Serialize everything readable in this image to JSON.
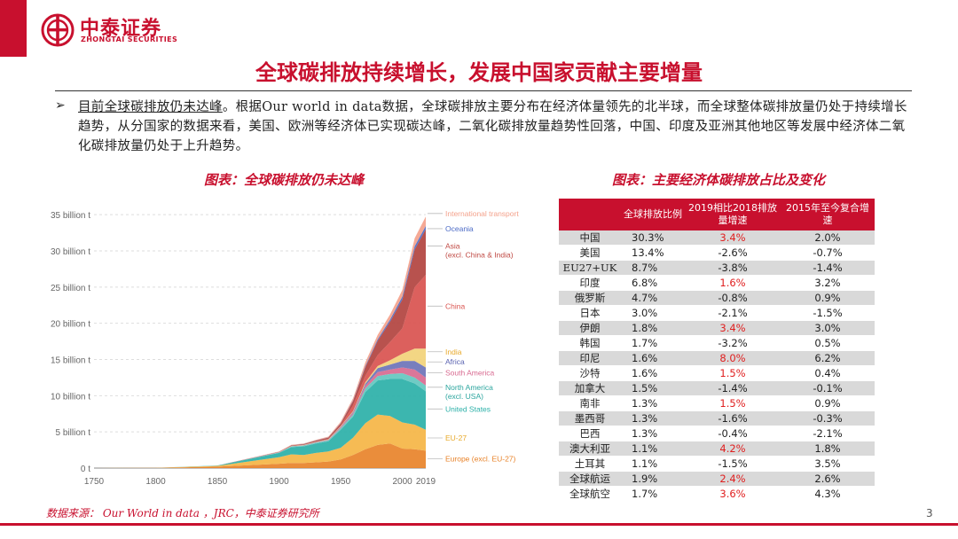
{
  "brand": {
    "name_cn": "中泰证券",
    "name_en": "ZHONGTAI SECURITIES",
    "color": "#c8102e"
  },
  "title": "全球碳排放持续增长，发展中国家贡献主要增量",
  "bullet": {
    "arrow": "➢",
    "lead": "目前全球碳排放仍未达峰",
    "body": "。根据Our world in data数据，全球碳排放主要分布在经济体量领先的北半球，而全球整体碳排放量仍处于持续增长趋势，从分国家的数据来看，美国、欧洲等经济体已实现碳达峰，二氧化碳排放量趋势性回落，中国、印度及亚洲其他地区等发展中经济体二氧化碳排放量仍处于上升趋势。"
  },
  "left_caption": "图表：全球碳排放仍未达峰",
  "right_caption": "图表：主要经济体碳排放占比及变化",
  "chart_data": {
    "type": "area",
    "stacked": true,
    "x": [
      1750,
      1800,
      1850,
      1900,
      1910,
      1920,
      1930,
      1940,
      1950,
      1960,
      1970,
      1980,
      1990,
      2000,
      2010,
      2019
    ],
    "ylim": [
      0,
      36
    ],
    "y_ticks": [
      "0 t",
      "5 billion t",
      "10 billion t",
      "15 billion t",
      "20 billion t",
      "25 billion t",
      "30 billion t",
      "35 billion t"
    ],
    "x_ticks": [
      "1750",
      "1800",
      "1850",
      "1900",
      "1950",
      "2000",
      "2019"
    ],
    "x_tick_values": [
      1750,
      1800,
      1850,
      1900,
      1950,
      2000,
      2019
    ],
    "series": [
      {
        "name": "Europe (excl. EU-27)",
        "color": "#e8832a",
        "values": [
          0,
          0.01,
          0.2,
          0.6,
          0.7,
          0.7,
          0.8,
          0.9,
          1.2,
          1.8,
          2.6,
          3.2,
          3.4,
          2.7,
          2.6,
          2.4
        ]
      },
      {
        "name": "EU-27",
        "color": "#f5b545",
        "values": [
          0,
          0.02,
          0.1,
          0.9,
          1.2,
          1.1,
          1.3,
          1.4,
          1.6,
          2.4,
          3.6,
          4.2,
          3.8,
          3.6,
          3.4,
          2.9
        ]
      },
      {
        "name": "United States",
        "color": "#2bb0a8",
        "values": [
          0,
          0,
          0.05,
          0.6,
          1.0,
          1.2,
          1.3,
          1.4,
          2.5,
          2.9,
          4.3,
          4.7,
          5.1,
          6.0,
          5.7,
          5.3
        ]
      },
      {
        "name": "North America (excl. USA)",
        "color": "#63c7bf",
        "values": [
          0,
          0,
          0,
          0.05,
          0.08,
          0.1,
          0.1,
          0.12,
          0.2,
          0.3,
          0.5,
          0.6,
          0.7,
          0.8,
          0.8,
          0.8
        ]
      },
      {
        "name": "South America",
        "color": "#d86a90",
        "values": [
          0,
          0,
          0,
          0.01,
          0.02,
          0.03,
          0.04,
          0.05,
          0.1,
          0.2,
          0.35,
          0.55,
          0.6,
          0.8,
          1.1,
          1.1
        ]
      },
      {
        "name": "Africa",
        "color": "#6c73b8",
        "values": [
          0,
          0,
          0,
          0.01,
          0.02,
          0.03,
          0.04,
          0.05,
          0.1,
          0.15,
          0.3,
          0.55,
          0.7,
          0.9,
          1.2,
          1.4
        ]
      },
      {
        "name": "India",
        "color": "#f2d37a",
        "values": [
          0,
          0,
          0,
          0.02,
          0.03,
          0.04,
          0.05,
          0.06,
          0.07,
          0.1,
          0.2,
          0.3,
          0.6,
          1.0,
          1.7,
          2.6
        ]
      },
      {
        "name": "China",
        "color": "#d9534f",
        "values": [
          0,
          0,
          0,
          0,
          0.01,
          0.01,
          0.02,
          0.03,
          0.08,
          0.8,
          0.9,
          1.5,
          2.5,
          3.5,
          8.5,
          10.2
        ]
      },
      {
        "name": "Asia (excl. China & India)",
        "color": "#b2433f",
        "values": [
          0,
          0,
          0,
          0.05,
          0.08,
          0.1,
          0.15,
          0.2,
          0.3,
          0.6,
          1.2,
          2.0,
          2.8,
          4.0,
          5.2,
          6.3
        ]
      },
      {
        "name": "Oceania",
        "color": "#4c6bc6",
        "values": [
          0,
          0,
          0,
          0.01,
          0.02,
          0.02,
          0.03,
          0.03,
          0.05,
          0.08,
          0.15,
          0.2,
          0.3,
          0.4,
          0.45,
          0.45
        ]
      },
      {
        "name": "International transport",
        "color": "#f4a28c",
        "values": [
          0,
          0,
          0,
          0.05,
          0.06,
          0.07,
          0.08,
          0.1,
          0.2,
          0.3,
          0.5,
          0.6,
          0.7,
          0.9,
          1.1,
          1.3
        ]
      }
    ],
    "legend_labels": [
      {
        "text": "International transport",
        "color": "#f4a28c",
        "y": 34.8
      },
      {
        "text": "Oceania",
        "color": "#4c6bc6",
        "y": 32.7
      },
      {
        "text": "Asia (excl. China & India)",
        "color": "#c04a44",
        "y": 30.3
      },
      {
        "text": "China",
        "color": "#d9534f",
        "y": 22.0
      },
      {
        "text": "India",
        "color": "#e8a92a",
        "y": 15.7
      },
      {
        "text": "Africa",
        "color": "#5a62b0",
        "y": 14.3
      },
      {
        "text": "South America",
        "color": "#d86a90",
        "y": 12.8
      },
      {
        "text": "North America (excl. USA)",
        "color": "#2ba59e",
        "y": 10.8
      },
      {
        "text": "United States",
        "color": "#2bb0a8",
        "y": 7.8
      },
      {
        "text": "EU-27",
        "color": "#e8a92a",
        "y": 3.8
      },
      {
        "text": "Europe (excl. EU-27)",
        "color": "#e8832a",
        "y": 0.9
      }
    ]
  },
  "table": {
    "headers": [
      "",
      "全球排放比例",
      "2019相比2018排放量增速",
      "2015年至今复合增速"
    ],
    "rows": [
      {
        "name": "中国",
        "share": "30.3%",
        "yoy": "3.4%",
        "yoy_red": true,
        "cagr": "2.0%"
      },
      {
        "name": "美国",
        "share": "13.4%",
        "yoy": "-2.6%",
        "yoy_red": false,
        "cagr": "-0.7%"
      },
      {
        "name": "EU27+UK",
        "share": "8.7%",
        "yoy": "-3.8%",
        "yoy_red": false,
        "cagr": "-1.4%"
      },
      {
        "name": "印度",
        "share": "6.8%",
        "yoy": "1.6%",
        "yoy_red": true,
        "cagr": "3.2%"
      },
      {
        "name": "俄罗斯",
        "share": "4.7%",
        "yoy": "-0.8%",
        "yoy_red": false,
        "cagr": "0.9%"
      },
      {
        "name": "日本",
        "share": "3.0%",
        "yoy": "-2.1%",
        "yoy_red": false,
        "cagr": "-1.5%"
      },
      {
        "name": "伊朗",
        "share": "1.8%",
        "yoy": "3.4%",
        "yoy_red": true,
        "cagr": "3.0%"
      },
      {
        "name": "韩国",
        "share": "1.7%",
        "yoy": "-3.2%",
        "yoy_red": false,
        "cagr": "0.5%"
      },
      {
        "name": "印尼",
        "share": "1.6%",
        "yoy": "8.0%",
        "yoy_red": true,
        "cagr": "6.2%"
      },
      {
        "name": "沙特",
        "share": "1.6%",
        "yoy": "1.5%",
        "yoy_red": true,
        "cagr": "0.4%"
      },
      {
        "name": "加拿大",
        "share": "1.5%",
        "yoy": "-1.4%",
        "yoy_red": false,
        "cagr": "-0.1%"
      },
      {
        "name": "南非",
        "share": "1.3%",
        "yoy": "1.5%",
        "yoy_red": true,
        "cagr": "0.9%"
      },
      {
        "name": "墨西哥",
        "share": "1.3%",
        "yoy": "-1.6%",
        "yoy_red": false,
        "cagr": "-0.3%"
      },
      {
        "name": "巴西",
        "share": "1.3%",
        "yoy": "-0.4%",
        "yoy_red": false,
        "cagr": "-2.1%"
      },
      {
        "name": "澳大利亚",
        "share": "1.1%",
        "yoy": "4.2%",
        "yoy_red": true,
        "cagr": "1.8%"
      },
      {
        "name": "土耳其",
        "share": "1.1%",
        "yoy": "-1.5%",
        "yoy_red": false,
        "cagr": "3.5%"
      },
      {
        "name": "全球航运",
        "share": "1.9%",
        "yoy": "2.4%",
        "yoy_red": true,
        "cagr": "2.6%"
      },
      {
        "name": "全球航空",
        "share": "1.7%",
        "yoy": "3.6%",
        "yoy_red": true,
        "cagr": "4.3%"
      }
    ]
  },
  "source": "数据来源： Our World in data ，JRC，中泰证券研究所",
  "page_number": "3"
}
